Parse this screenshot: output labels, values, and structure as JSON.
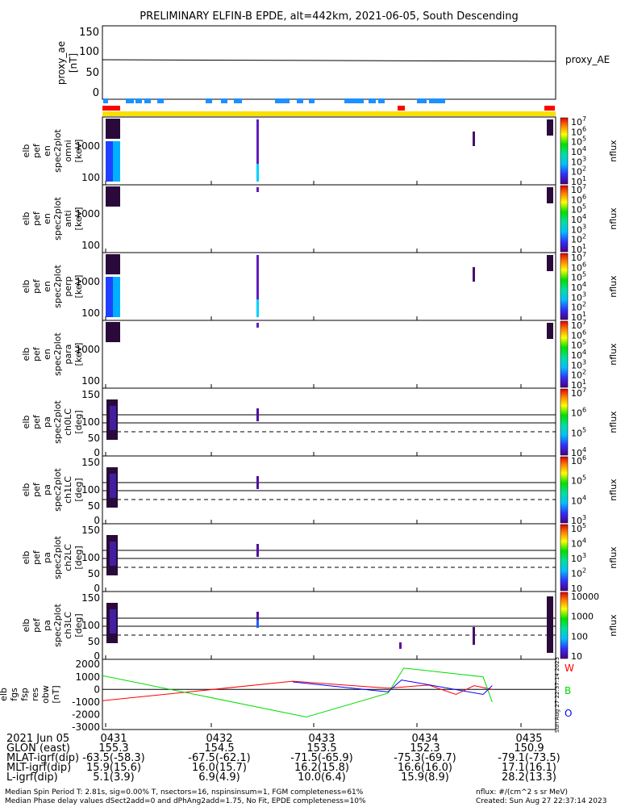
{
  "title": "PRELIMINARY ELFIN-B EPDE, alt=442km, 2021-06-05, South Descending",
  "colors": {
    "red": "#ff0000",
    "green": "#00dd00",
    "blue": "#0000ff",
    "yellow": "#f8e000",
    "bar_blue": "#1e90ff"
  },
  "proxy": {
    "ylabel": "proxy_ae\n[nT]",
    "legend": "proxy_AE",
    "yticks": [
      "150",
      "100",
      "50",
      "0"
    ]
  },
  "colorbar_label": "nflux",
  "spectro_panels": [
    {
      "ylabel": [
        "elb",
        "pef",
        "en",
        "spec2plot",
        "omni",
        "[keV]"
      ],
      "yticks": [
        "1000",
        "100"
      ]
    },
    {
      "ylabel": [
        "elb",
        "pef",
        "en",
        "spec2plot",
        "anti",
        "[keV]"
      ],
      "yticks": [
        "1000",
        "100"
      ]
    },
    {
      "ylabel": [
        "elb",
        "pef",
        "en",
        "spec2plot",
        "perp",
        "[keV]"
      ],
      "yticks": [
        "1000",
        "100"
      ]
    },
    {
      "ylabel": [
        "elb",
        "pef",
        "en",
        "spec2plot",
        "para",
        "[keV]"
      ],
      "yticks": [
        "1000",
        "100"
      ]
    },
    {
      "ylabel": [
        "elb",
        "pef",
        "pa",
        "spec2plot",
        "ch0LC",
        "[deg]"
      ],
      "yticks": [
        "150",
        "100",
        "50",
        "0"
      ]
    },
    {
      "ylabel": [
        "elb",
        "pef",
        "pa",
        "spec2plot",
        "ch1LC",
        "[deg]"
      ],
      "yticks": [
        "150",
        "100",
        "50",
        "0"
      ]
    },
    {
      "ylabel": [
        "elb",
        "pef",
        "pa",
        "spec2plot",
        "ch2LC",
        "[deg]"
      ],
      "yticks": [
        "150",
        "100",
        "50",
        "0"
      ]
    },
    {
      "ylabel": [
        "elb",
        "pef",
        "pa",
        "spec2plot",
        "ch3LC",
        "[deg]"
      ],
      "yticks": [
        "150",
        "100",
        "50",
        "0"
      ]
    }
  ],
  "colorbar_ticks": [
    [
      "10",
      "10",
      "10",
      "10",
      "10",
      "10",
      "10"
    ],
    [
      "10",
      "10",
      "10",
      "10",
      "10",
      "10",
      "10"
    ],
    [
      "10",
      "10",
      "10",
      "10",
      "10",
      "10",
      "10"
    ],
    [
      "10",
      "10",
      "10",
      "10",
      "10",
      "10",
      "10"
    ],
    [
      "10",
      "10",
      "10",
      "10"
    ],
    [
      "10",
      "10",
      "10",
      "10"
    ],
    [
      "10",
      "10",
      "10",
      "10",
      "10"
    ],
    [
      "10000",
      "1000",
      "100",
      "10"
    ]
  ],
  "colorbar_exps": [
    [
      "7",
      "6",
      "5",
      "4",
      "3",
      "2",
      "1"
    ],
    [
      "7",
      "6",
      "5",
      "4",
      "3",
      "2",
      "1"
    ],
    [
      "7",
      "6",
      "5",
      "4",
      "3",
      "2",
      "1"
    ],
    [
      "7",
      "6",
      "5",
      "4",
      "3",
      "2",
      "1"
    ],
    [
      "7",
      "6",
      "5",
      "4"
    ],
    [
      "6",
      "5",
      "4",
      "3"
    ],
    [
      "5",
      "4",
      "3",
      "2"
    ],
    [
      "",
      "",
      "",
      ""
    ]
  ],
  "fgm": {
    "ylabel": [
      "elb",
      "fgs",
      "fsp",
      "res",
      "obw",
      "[nT]"
    ],
    "yticks": [
      "2000",
      "1000",
      "0",
      "-1000",
      "-2000",
      "-3000"
    ],
    "legend": [
      "W",
      "B",
      "O"
    ]
  },
  "xaxis": {
    "ticks": [
      "0431",
      "0432",
      "0433",
      "0434",
      "0435"
    ]
  },
  "chart_data": {
    "type": "line",
    "title": "PRELIMINARY ELFIN-B EPDE, alt=442km, 2021-06-05, South Descending",
    "proxy_ae": {
      "x": [
        "04:30.95",
        "04:35.45"
      ],
      "y": [
        80,
        75
      ],
      "ylim": [
        -10,
        160
      ]
    },
    "fgm_lines": {
      "ylim": [
        -3200,
        2400
      ],
      "series": [
        {
          "name": "W",
          "color": "#ff0000",
          "x": [
            0,
            0.42,
            0.63,
            0.72,
            0.78,
            0.82,
            0.86
          ],
          "y": [
            -900,
            650,
            100,
            350,
            -400,
            300,
            0
          ]
        },
        {
          "name": "B",
          "color": "#00dd00",
          "x": [
            0,
            0.45,
            0.63,
            0.665,
            0.84,
            0.86
          ],
          "y": [
            1100,
            -2200,
            -300,
            1700,
            1000,
            -1000
          ]
        },
        {
          "name": "O",
          "color": "#0000ff",
          "x": [
            0.42,
            0.63,
            0.66,
            0.84,
            0.86
          ],
          "y": [
            600,
            -200,
            750,
            -400,
            300
          ]
        }
      ]
    }
  },
  "footer": {
    "row_labels": [
      "2021 Jun 05",
      "GLON (east)",
      "MLAT-igrf(dip)",
      "MLT-igrf(dip)",
      "L-igrf(dip)"
    ],
    "columns": [
      [
        "0431",
        "155.3",
        "-63.5(-58.3)",
        "15.9(15.6)",
        "5.1(3.9)"
      ],
      [
        "0432",
        "154.5",
        "-67.5(-62.1)",
        "16.0(15.7)",
        "6.9(4.9)"
      ],
      [
        "0433",
        "153.5",
        "-71.5(-65.9)",
        "16.2(15.8)",
        "10.0(6.4)"
      ],
      [
        "0434",
        "152.3",
        "-75.3(-69.7)",
        "16.6(16.0)",
        "15.9(8.9)"
      ],
      [
        "0435",
        "150.9",
        "-79.1(-73.5)",
        "17.1(16.1)",
        "28.2(13.3)"
      ]
    ],
    "note1": "Median Spin Period T: 2.81s, sig=0.00% T, nsectors=16, nspinsinsum=1, FGM completeness=61%",
    "note2": "Median Phase delay values dSect2add=0 and dPhAng2add=1.75, No Fit, EPDE completeness=10%",
    "units": "nflux: #/(cm^2 s sr MeV)",
    "created": "Created: Sun Aug 27 22:37:14 2023",
    "side_stamp": "Sun Aug 27 22:37:14 2023"
  }
}
